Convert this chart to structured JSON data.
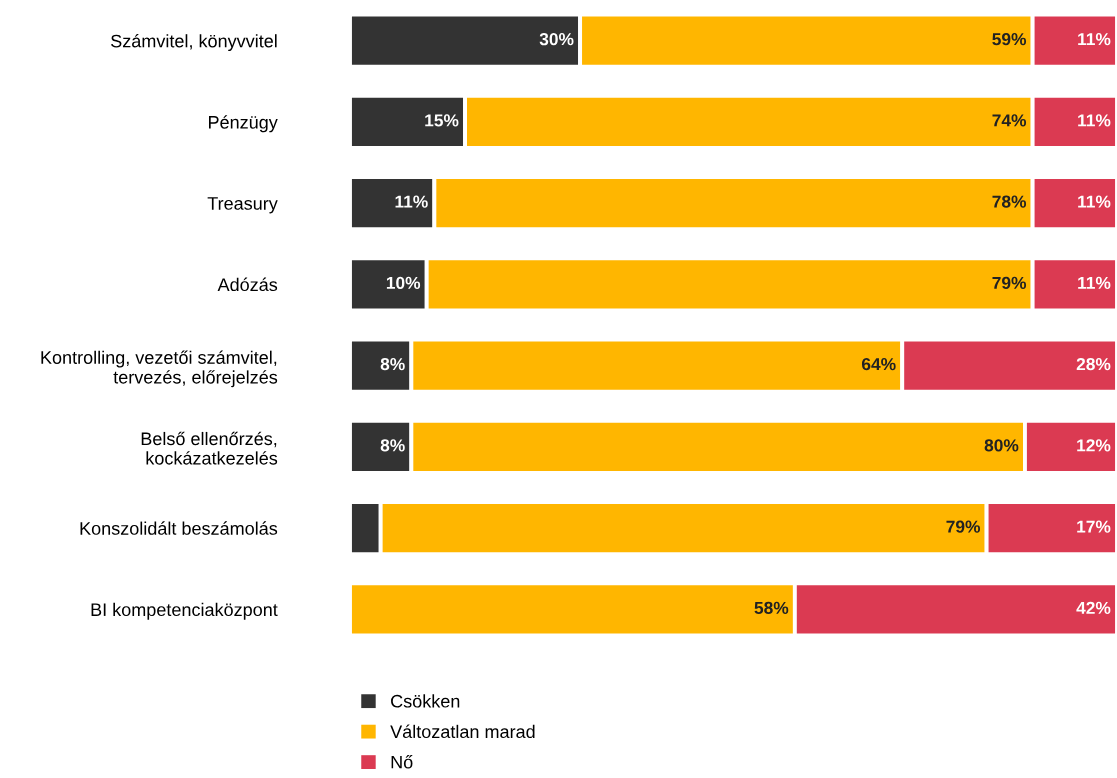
{
  "chart_data": {
    "type": "bar",
    "orientation": "horizontal",
    "stacked": true,
    "legend": "bottom",
    "categories": [
      "Számvitel, könyvvitel",
      "Pénzügy",
      "Treasury",
      "Adózás",
      "Kontrolling, vezetői számvitel,\ntervezés, előrejelzés",
      "Belső ellenőrzés,\nkockázatkezelés",
      "Konszolidált beszámolás",
      "BI kompetenciaközpont"
    ],
    "series": [
      {
        "name": "Csökken",
        "color": "#333333",
        "values": [
          30,
          15,
          11,
          10,
          8,
          8,
          4,
          0
        ],
        "value_labels": [
          "30%",
          "15%",
          "11%",
          "10%",
          "8%",
          "8%",
          null,
          null
        ]
      },
      {
        "name": "Változatlan marad",
        "color": "#ffb600",
        "values": [
          59,
          74,
          78,
          79,
          64,
          80,
          79,
          58
        ],
        "value_labels": [
          "59%",
          "74%",
          "78%",
          "79%",
          "64%",
          "80%",
          "79%",
          "58%"
        ]
      },
      {
        "name": "Nő",
        "color": "#db3a52",
        "values": [
          11,
          11,
          11,
          11,
          28,
          12,
          17,
          42
        ],
        "value_labels": [
          "11%",
          "11%",
          "11%",
          "11%",
          "28%",
          "12%",
          "17%",
          "42%"
        ]
      }
    ]
  }
}
